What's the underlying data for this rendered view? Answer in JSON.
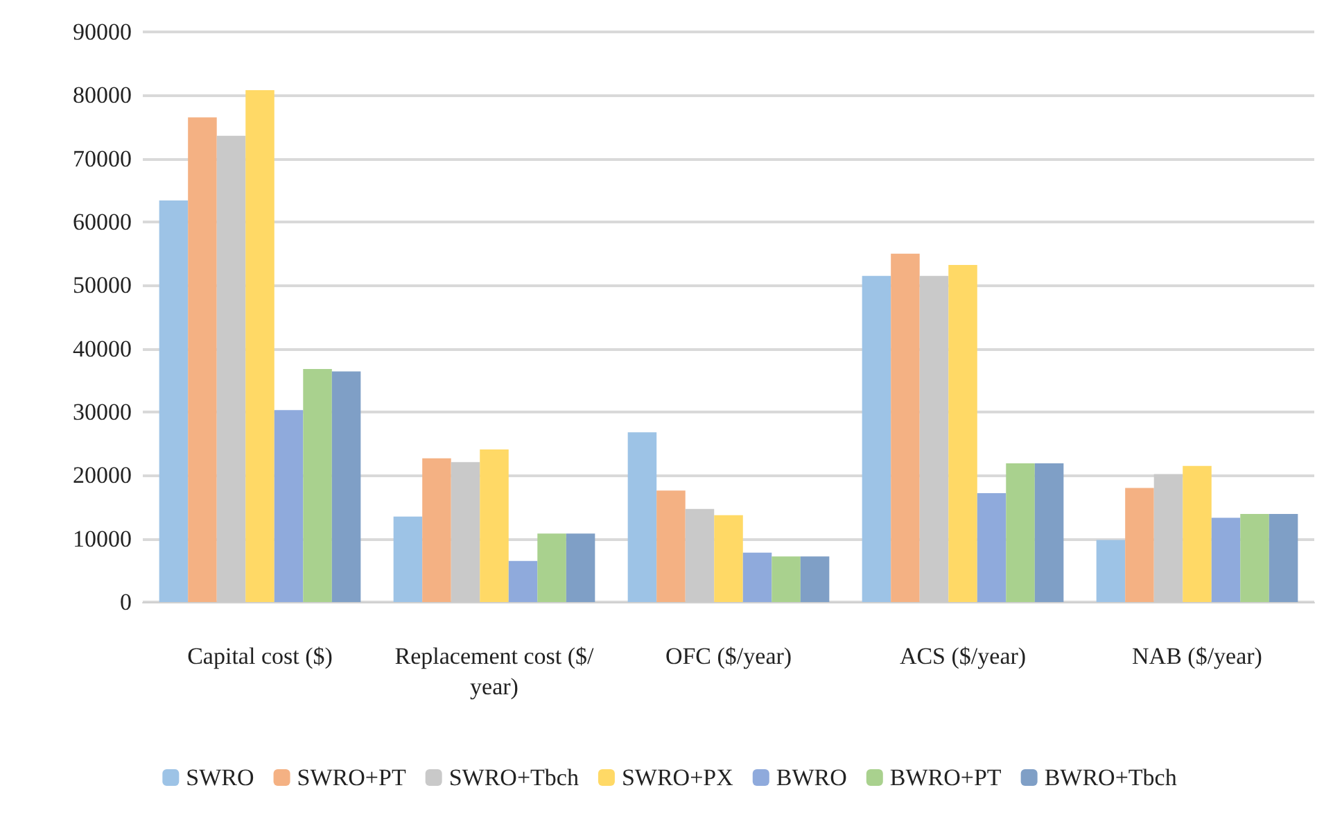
{
  "chart_data": {
    "type": "bar",
    "categories": [
      "Capital cost ($)",
      "Replacement cost ($/year)",
      "OFC ($/year)",
      "ACS ($/year)",
      "NAB ($/year)"
    ],
    "series": [
      {
        "name": "SWRO",
        "color": "#9dc3e6",
        "values": [
          63400,
          13500,
          26800,
          51500,
          9800
        ]
      },
      {
        "name": "SWRO+PT",
        "color": "#f4b183",
        "values": [
          76500,
          22700,
          17600,
          55000,
          18000
        ]
      },
      {
        "name": "SWRO+Tbch",
        "color": "#c9c9c9",
        "values": [
          73600,
          22100,
          14700,
          51500,
          20200
        ]
      },
      {
        "name": "SWRO+PX",
        "color": "#ffd966",
        "values": [
          80800,
          24100,
          13700,
          53200,
          21500
        ]
      },
      {
        "name": "BWRO",
        "color": "#8faadc",
        "values": [
          30300,
          6500,
          7800,
          17200,
          13300
        ]
      },
      {
        "name": "BWRO+PT",
        "color": "#a9d18e",
        "values": [
          36800,
          10800,
          7200,
          21900,
          13900
        ]
      },
      {
        "name": "BWRO+Tbch",
        "color": "#7f9fc6",
        "values": [
          36400,
          10800,
          7200,
          21900,
          13900
        ]
      }
    ],
    "ylim": [
      0,
      90000
    ],
    "yticks": [
      0,
      10000,
      20000,
      30000,
      40000,
      50000,
      60000,
      70000,
      80000,
      90000
    ],
    "grid": "y",
    "legend": "bottom"
  }
}
